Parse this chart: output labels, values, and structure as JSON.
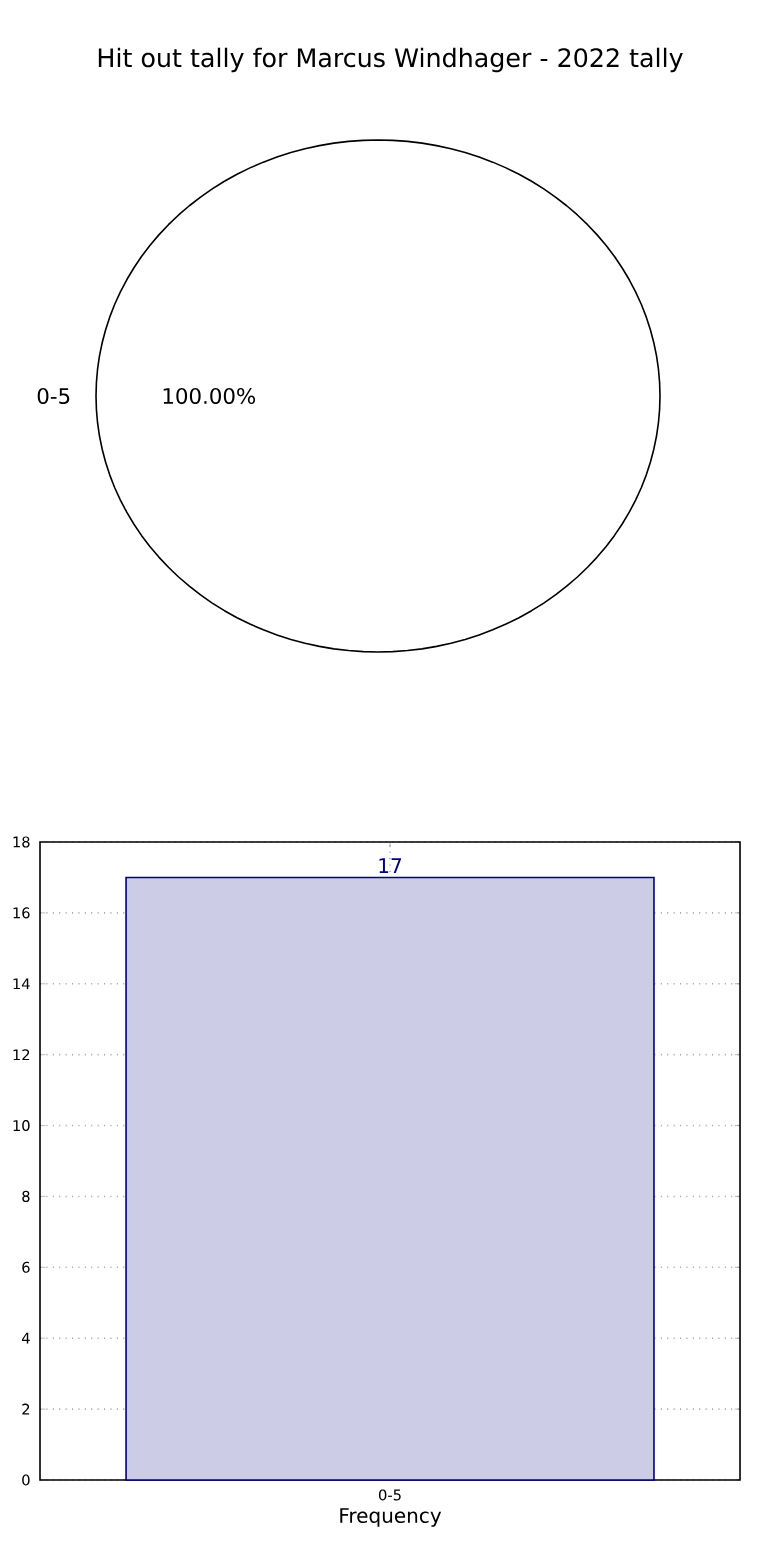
{
  "chart_data": [
    {
      "type": "pie",
      "title": "Hit out tally for Marcus Windhager - 2022 tally",
      "categories": [
        "0-5"
      ],
      "values": [
        100
      ],
      "colors": [
        "#ffffff"
      ],
      "value_labels": [
        "100.00%"
      ]
    },
    {
      "type": "bar",
      "categories": [
        "0-5"
      ],
      "values": [
        17
      ],
      "color": "#ccccE6",
      "xlabel": "Frequency",
      "ylim": [
        0,
        18
      ],
      "yticks": [
        0,
        2,
        4,
        6,
        8,
        10,
        12,
        14,
        16,
        18
      ],
      "grid": true,
      "data_labels": true
    }
  ]
}
